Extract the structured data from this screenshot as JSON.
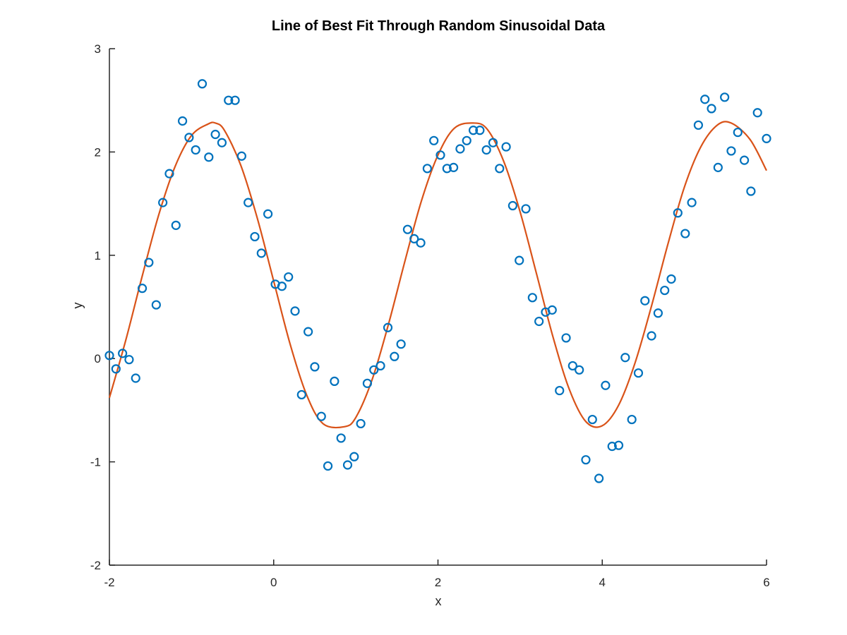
{
  "chart_data": {
    "type": "scatter",
    "title": "Line of Best Fit Through Random Sinusoidal Data",
    "xlabel": "x",
    "ylabel": "y",
    "xlim": [
      -2,
      6
    ],
    "ylim": [
      -2,
      3
    ],
    "xticks": [
      -2,
      0,
      2,
      4,
      6
    ],
    "yticks": [
      -2,
      -1,
      0,
      1,
      2,
      3
    ],
    "grid": false,
    "legend": "none",
    "colors": {
      "points": "#0072BD",
      "fit": "#D95319"
    },
    "series": [
      {
        "kind": "scatter",
        "marker": "circle",
        "x": [
          -2.0,
          -1.92,
          -1.84,
          -1.76,
          -1.68,
          -1.6,
          -1.52,
          -1.43,
          -1.35,
          -1.27,
          -1.19,
          -1.11,
          -1.03,
          -0.95,
          -0.87,
          -0.79,
          -0.71,
          -0.63,
          -0.55,
          -0.47,
          -0.39,
          -0.31,
          -0.23,
          -0.15,
          -0.07,
          0.02,
          0.1,
          0.18,
          0.26,
          0.34,
          0.42,
          0.5,
          0.58,
          0.66,
          0.74,
          0.82,
          0.9,
          0.98,
          1.06,
          1.14,
          1.22,
          1.3,
          1.39,
          1.47,
          1.55,
          1.63,
          1.71,
          1.79,
          1.87,
          1.95,
          2.03,
          2.11,
          2.19,
          2.27,
          2.35,
          2.43,
          2.51,
          2.59,
          2.67,
          2.75,
          2.83,
          2.91,
          2.99,
          3.07,
          3.15,
          3.23,
          3.31,
          3.39,
          3.48,
          3.56,
          3.64,
          3.72,
          3.8,
          3.88,
          3.96,
          4.04,
          4.12,
          4.2,
          4.28,
          4.36,
          4.44,
          4.52,
          4.6,
          4.68,
          4.76,
          4.84,
          4.92,
          5.01,
          5.09,
          5.17,
          5.25,
          5.33,
          5.41,
          5.49,
          5.57,
          5.65,
          5.73,
          5.81,
          5.89,
          6.0
        ],
        "y": [
          0.03,
          -0.1,
          0.05,
          -0.01,
          -0.19,
          0.68,
          0.93,
          0.52,
          1.51,
          1.79,
          1.29,
          2.3,
          2.14,
          2.02,
          2.66,
          1.95,
          2.17,
          2.09,
          2.5,
          2.5,
          1.96,
          1.51,
          1.18,
          1.02,
          1.4,
          0.72,
          0.7,
          0.79,
          0.46,
          -0.35,
          0.26,
          -0.08,
          -0.56,
          -1.04,
          -0.22,
          -0.77,
          -1.03,
          -0.95,
          -0.63,
          -0.24,
          -0.11,
          -0.07,
          0.3,
          0.02,
          0.14,
          1.25,
          1.16,
          1.12,
          1.84,
          2.11,
          1.97,
          1.84,
          1.85,
          2.03,
          2.11,
          2.21,
          2.21,
          2.02,
          2.09,
          1.84,
          2.05,
          1.48,
          0.95,
          1.45,
          0.59,
          0.36,
          0.45,
          0.47,
          -0.31,
          0.2,
          -0.07,
          -0.11,
          -0.98,
          -0.59,
          -1.16,
          -0.26,
          -0.85,
          -0.84,
          0.01,
          -0.59,
          -0.14,
          0.56,
          0.22,
          0.44,
          0.66,
          0.77,
          1.41,
          1.21,
          1.51,
          2.26,
          2.51,
          2.42,
          1.85,
          2.53,
          2.01,
          2.19,
          1.92,
          1.62,
          2.38,
          2.13
        ]
      },
      {
        "kind": "line",
        "label": "fit",
        "x": [
          -2.0,
          -1.8,
          -1.6,
          -1.4,
          -1.2,
          -1.0,
          -0.8,
          -0.71,
          -0.6,
          -0.4,
          -0.2,
          0.0,
          0.2,
          0.4,
          0.6,
          0.86,
          1.0,
          1.2,
          1.4,
          1.6,
          1.8,
          2.0,
          2.2,
          2.43,
          2.6,
          2.8,
          3.0,
          3.2,
          3.4,
          3.6,
          3.8,
          4.0,
          4.2,
          4.4,
          4.6,
          4.8,
          5.0,
          5.2,
          5.4,
          5.57,
          5.8,
          6.0
        ],
        "y": [
          -0.38,
          0.18,
          0.8,
          1.39,
          1.86,
          2.16,
          2.27,
          2.28,
          2.21,
          1.87,
          1.36,
          0.75,
          0.14,
          -0.35,
          -0.63,
          -0.66,
          -0.57,
          -0.2,
          0.34,
          0.95,
          1.53,
          1.97,
          2.23,
          2.28,
          2.22,
          1.91,
          1.42,
          0.82,
          0.21,
          -0.3,
          -0.61,
          -0.65,
          -0.45,
          -0.04,
          0.51,
          1.11,
          1.66,
          2.05,
          2.26,
          2.28,
          2.12,
          1.82
        ]
      }
    ]
  }
}
